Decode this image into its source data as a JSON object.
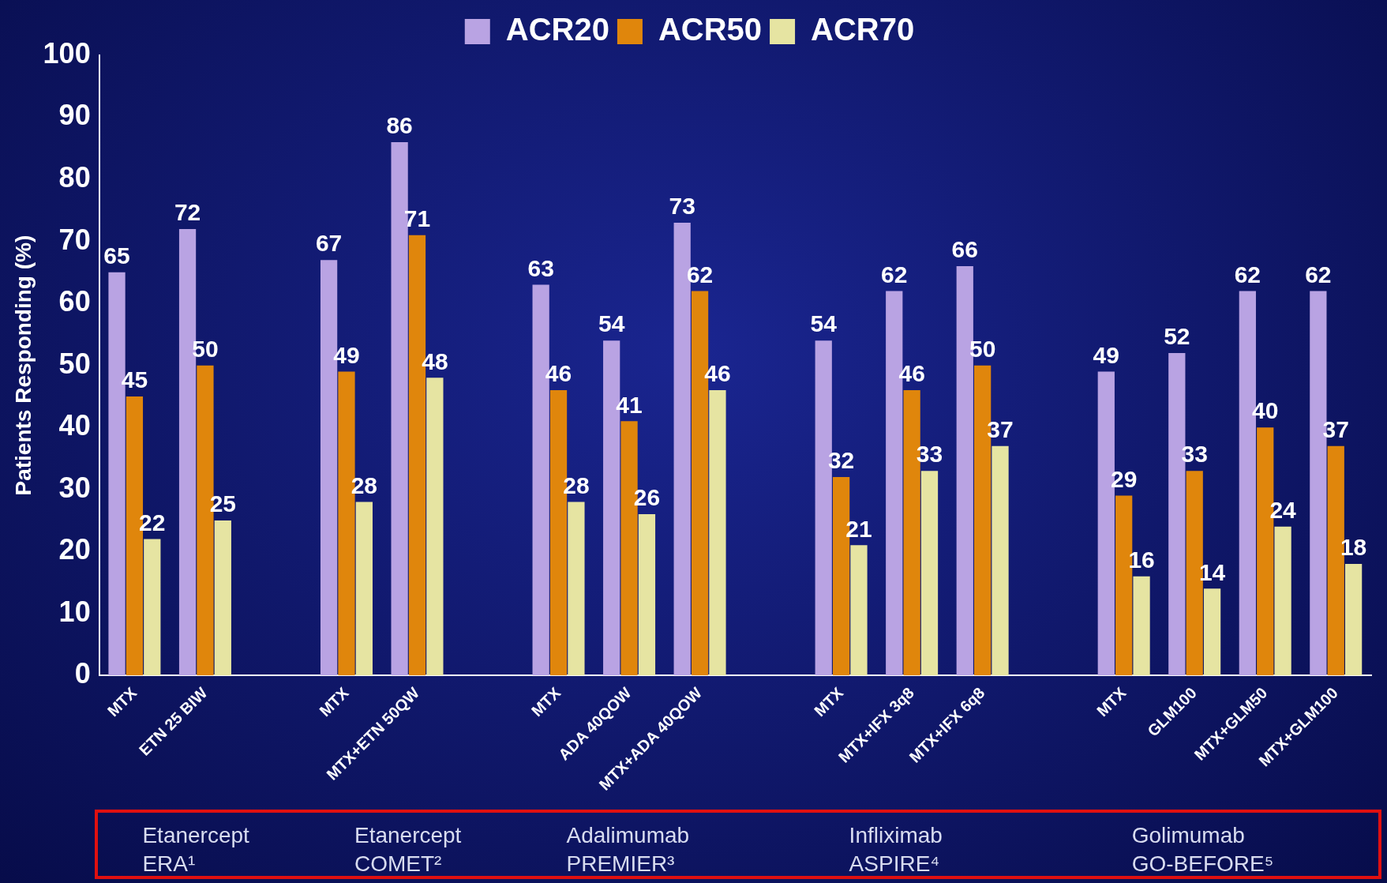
{
  "chart_data": {
    "type": "bar",
    "ylabel": "Patients Responding (%)",
    "categories": [
      "MTX",
      "ETN 25 BIW",
      null,
      "MTX",
      "MTX+ETN 50QW",
      null,
      "MTX",
      "ADA 40QOW",
      "MTX+ADA 40QOW",
      null,
      "MTX",
      "MTX+IFX 3q8",
      "MTX+IFX 6q8",
      null,
      "MTX",
      "GLM100",
      "MTX+GLM50",
      "MTX+GLM100"
    ],
    "series": [
      {
        "name": "ACR20",
        "color": "#b9a3e3",
        "values": [
          65,
          72,
          null,
          67,
          86,
          null,
          63,
          54,
          73,
          null,
          54,
          62,
          66,
          null,
          49,
          52,
          62,
          62
        ]
      },
      {
        "name": "ACR50",
        "color": "#e0860c",
        "values": [
          45,
          50,
          null,
          49,
          71,
          null,
          46,
          41,
          62,
          null,
          32,
          46,
          50,
          null,
          29,
          33,
          40,
          37
        ]
      },
      {
        "name": "ACR70",
        "color": "#e6e4a2",
        "values": [
          22,
          25,
          null,
          28,
          48,
          null,
          28,
          26,
          46,
          null,
          21,
          33,
          37,
          null,
          16,
          14,
          24,
          18
        ]
      }
    ],
    "ylim": [
      0,
      100
    ],
    "yticks": [
      0,
      10,
      20,
      30,
      40,
      50,
      60,
      70,
      80,
      90,
      100
    ],
    "grid": false,
    "legend": "top",
    "data_labels": true,
    "annotations": [
      "Etanercept\nERA¹",
      "Etanercept\nCOMET²",
      "Adalimumab\nPREMIER³",
      "Infliximab\nASPIRE⁴",
      "Golimumab\nGO-BEFORE⁵"
    ]
  }
}
